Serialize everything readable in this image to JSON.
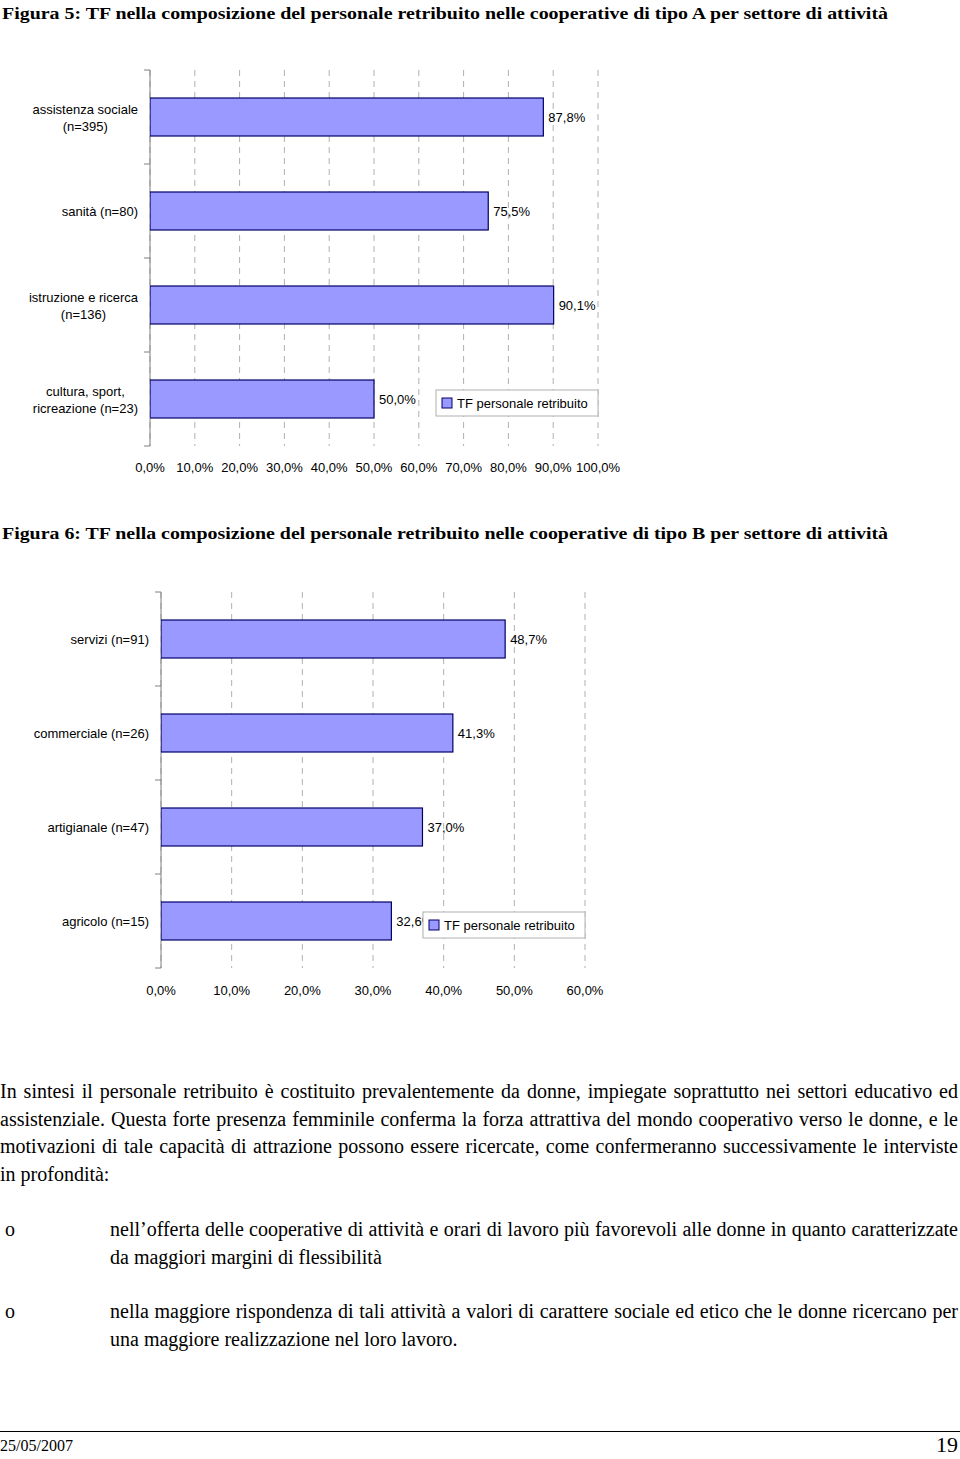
{
  "chart_data": [
    {
      "type": "bar",
      "orientation": "horizontal",
      "title": "Figura 5: TF nella composizione del personale retribuito nelle cooperative di tipo A per settore di attività",
      "categories": [
        "assistenza sociale\n(n=395)",
        "sanità (n=80)",
        "istruzione e ricerca\n(n=136)",
        "cultura, sport,\nricreazione (n=23)"
      ],
      "series": [
        {
          "name": "TF personale retribuito",
          "color": "#9999ff",
          "values": [
            87.8,
            75.5,
            90.1,
            50.0
          ],
          "value_labels": [
            "87,8%",
            "75,5%",
            "90,1%",
            "50,0%"
          ]
        }
      ],
      "xlim": [
        0,
        100
      ],
      "xticks": [
        {
          "value": 0,
          "label": "0,0%"
        },
        {
          "value": 10,
          "label": "10,0%"
        },
        {
          "value": 20,
          "label": "20,0%"
        },
        {
          "value": 30,
          "label": "30,0%"
        },
        {
          "value": 40,
          "label": "40,0%"
        },
        {
          "value": 50,
          "label": "50,0%"
        },
        {
          "value": 60,
          "label": "60,0%"
        },
        {
          "value": 70,
          "label": "70,0%"
        },
        {
          "value": 80,
          "label": "80,0%"
        },
        {
          "value": 90,
          "label": "90,0%"
        },
        {
          "value": 100,
          "label": "100,0%"
        }
      ],
      "grid": true,
      "data_labels": true,
      "legend": "bottom-right"
    },
    {
      "type": "bar",
      "orientation": "horizontal",
      "title": "Figura 6: TF nella composizione del personale retribuito nelle cooperative di tipo B per settore di attività",
      "categories": [
        "servizi (n=91)",
        "commerciale (n=26)",
        "artigianale (n=47)",
        "agricolo (n=15)"
      ],
      "series": [
        {
          "name": "TF personale retribuito",
          "color": "#9999ff",
          "values": [
            48.7,
            41.3,
            37.0,
            32.6
          ],
          "value_labels": [
            "48,7%",
            "41,3%",
            "37,0%",
            "32,6%"
          ]
        }
      ],
      "xlim": [
        0,
        60
      ],
      "xticks": [
        {
          "value": 0,
          "label": "0,0%"
        },
        {
          "value": 10,
          "label": "10,0%"
        },
        {
          "value": 20,
          "label": "20,0%"
        },
        {
          "value": 30,
          "label": "30,0%"
        },
        {
          "value": 40,
          "label": "40,0%"
        },
        {
          "value": 50,
          "label": "50,0%"
        },
        {
          "value": 60,
          "label": "60,0%"
        }
      ],
      "grid": true,
      "data_labels": true,
      "legend": "bottom-right"
    }
  ],
  "text": {
    "paragraph": "In sintesi il personale retribuito è costituito prevalentemente da donne, impiegate soprattutto nei settori educativo ed assistenziale. Questa forte presenza femminile conferma la forza attrattiva del mondo cooperativo verso le donne, e le motivazioni di tale capacità di attrazione possono essere ricercate, come confermeranno successivamente le interviste in profondità:",
    "bullet_marker": "o",
    "bullets": [
      "nell’offerta delle cooperative di attività e orari di lavoro più favorevoli alle donne in quanto caratterizzate da maggiori margini di flessibilità",
      "nella maggiore rispondenza di tali attività a valori di carattere sociale ed etico che le donne ricercano per una maggiore realizzazione nel loro lavoro."
    ],
    "footer_date": "25/05/2007",
    "page_number": "19"
  }
}
